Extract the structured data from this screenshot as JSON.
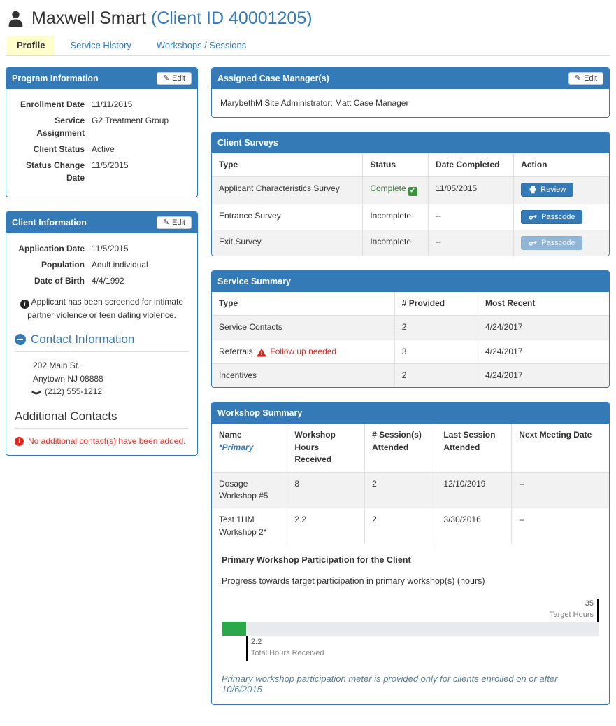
{
  "header": {
    "client_name": "Maxwell Smart",
    "client_id": "(Client ID 40001205)"
  },
  "tabs": {
    "profile": "Profile",
    "service_history": "Service History",
    "workshops": "Workshops / Sessions"
  },
  "program_info": {
    "title": "Program Information",
    "edit_label": "Edit",
    "fields": [
      {
        "label": "Enrollment Date",
        "value": "11/11/2015"
      },
      {
        "label": "Service Assignment",
        "value": "G2 Treatment Group"
      },
      {
        "label": "Client Status",
        "value": "Active"
      },
      {
        "label": "Status Change Date",
        "value": "11/5/2015"
      }
    ]
  },
  "client_info": {
    "title": "Client Information",
    "edit_label": "Edit",
    "fields": [
      {
        "label": "Application Date",
        "value": "11/5/2015"
      },
      {
        "label": "Population",
        "value": "Adult individual"
      },
      {
        "label": "Date of Birth",
        "value": "4/4/1992"
      }
    ],
    "screening_note": "Applicant has been screened for intimate partner violence or teen dating violence.",
    "contact_section": {
      "title": "Contact Information",
      "address_line1": "202 Main St.",
      "address_line2": "Anytown NJ 08888",
      "phone": "(212) 555-1212"
    },
    "additional_contacts": {
      "title": "Additional Contacts",
      "empty_message": "No additional contact(s) have been added."
    }
  },
  "case_managers": {
    "title": "Assigned Case Manager(s)",
    "edit_label": "Edit",
    "names": "MarybethM Site Administrator; Matt Case Manager"
  },
  "client_surveys": {
    "title": "Client Surveys",
    "columns": {
      "type": "Type",
      "status": "Status",
      "date": "Date Completed",
      "action": "Action"
    },
    "rows": [
      {
        "type": "Applicant Characteristics Survey",
        "status": "Complete",
        "date": "11/05/2015",
        "action": "Review"
      },
      {
        "type": "Entrance Survey",
        "status": "Incomplete",
        "date": "--",
        "action": "Passcode"
      },
      {
        "type": "Exit Survey",
        "status": "Incomplete",
        "date": "--",
        "action": "Passcode"
      }
    ]
  },
  "service_summary": {
    "title": "Service Summary",
    "columns": {
      "type": "Type",
      "provided": "# Provided",
      "recent": "Most Recent"
    },
    "rows": [
      {
        "type": "Service Contacts",
        "provided": "2",
        "recent": "4/24/2017"
      },
      {
        "type": "Referrals",
        "warning": "Follow up needed",
        "provided": "3",
        "recent": "4/24/2017"
      },
      {
        "type": "Incentives",
        "provided": "2",
        "recent": "4/24/2017"
      }
    ]
  },
  "workshop_summary": {
    "title": "Workshop Summary",
    "columns": {
      "name": "Name",
      "name_sub": "*Primary",
      "hours": "Workshop Hours Received",
      "sessions": "# Session(s) Attended",
      "last": "Last Session Attended",
      "next": "Next Meeting Date"
    },
    "rows": [
      {
        "name": "Dosage Workshop #5",
        "hours": "8",
        "sessions": "2",
        "last": "12/10/2019",
        "next": "--"
      },
      {
        "name": "Test 1HM Workshop 2*",
        "hours": "2.2",
        "sessions": "2",
        "last": "3/30/2016",
        "next": "--"
      }
    ],
    "participation": {
      "heading": "Primary Workshop Participation for the Client",
      "subheading": "Progress towards target participation in primary workshop(s) (hours)",
      "target_value": "35",
      "target_label": "Target Hours",
      "received_value": "2.2",
      "received_label": "Total Hours Received",
      "percent": 6.3,
      "note": "Primary workshop participation meter is provided only for clients enrolled on or after 10/6/2015"
    }
  },
  "colors": {
    "panel_blue": "#337ab7",
    "tab_active_bg": "#ffffcc",
    "success_green": "#3c763d",
    "alert_red": "#dd2a21",
    "meter_green": "#2ba84a",
    "meter_track": "#e9eaed",
    "note_blue": "#557e97"
  }
}
